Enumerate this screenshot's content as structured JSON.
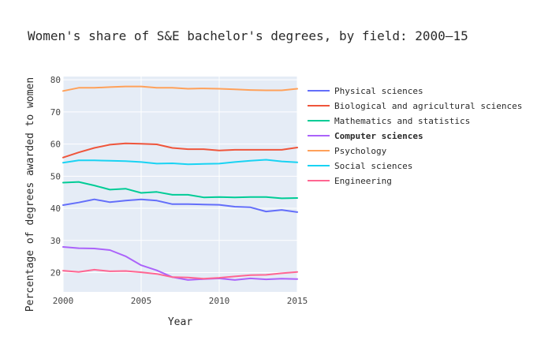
{
  "chart_data": {
    "type": "line",
    "title": "Women's share of S&E bachelor's degrees, by field: 2000–15",
    "xlabel": "Year",
    "ylabel": "Percentage of degrees awarded to women",
    "xlim": [
      2000,
      2015
    ],
    "ylim": [
      14,
      81
    ],
    "x_ticks": [
      2000,
      2005,
      2010,
      2015
    ],
    "y_ticks": [
      20,
      30,
      40,
      50,
      60,
      70,
      80
    ],
    "grid": true,
    "legend_position": "right",
    "x": [
      2000,
      2001,
      2002,
      2003,
      2004,
      2005,
      2006,
      2007,
      2008,
      2009,
      2010,
      2011,
      2012,
      2013,
      2014,
      2015
    ],
    "series": [
      {
        "name": "Physical sciences",
        "color": "#636efa",
        "bold": false,
        "values": [
          41.0,
          41.8,
          42.8,
          41.9,
          42.4,
          42.8,
          42.4,
          41.3,
          41.3,
          41.2,
          41.1,
          40.5,
          40.3,
          39.0,
          39.5,
          38.8
        ]
      },
      {
        "name": "Biological and agricultural sciences",
        "color": "#ef553b",
        "bold": false,
        "values": [
          55.8,
          57.4,
          58.8,
          59.8,
          60.2,
          60.1,
          59.9,
          58.8,
          58.4,
          58.4,
          58.0,
          58.2,
          58.2,
          58.2,
          58.2,
          58.9
        ]
      },
      {
        "name": "Mathematics and statistics",
        "color": "#00cc96",
        "bold": false,
        "values": [
          48.0,
          48.2,
          47.1,
          45.8,
          46.1,
          44.8,
          45.1,
          44.2,
          44.2,
          43.4,
          43.5,
          43.4,
          43.5,
          43.5,
          43.1,
          43.2
        ]
      },
      {
        "name": "Computer sciences",
        "color": "#ab63fa",
        "bold": true,
        "values": [
          28.0,
          27.6,
          27.5,
          27.0,
          25.1,
          22.3,
          20.7,
          18.6,
          17.7,
          18.0,
          18.2,
          17.7,
          18.2,
          17.9,
          18.1,
          18.0
        ]
      },
      {
        "name": "Psychology",
        "color": "#ffa15a",
        "bold": false,
        "values": [
          76.5,
          77.5,
          77.5,
          77.7,
          77.9,
          77.9,
          77.5,
          77.5,
          77.2,
          77.3,
          77.2,
          77.0,
          76.8,
          76.7,
          76.7,
          77.2
        ]
      },
      {
        "name": "Social sciences",
        "color": "#19d3f3",
        "bold": false,
        "values": [
          54.2,
          54.9,
          54.9,
          54.8,
          54.7,
          54.4,
          53.9,
          54.0,
          53.7,
          53.8,
          53.9,
          54.4,
          54.8,
          55.1,
          54.6,
          54.3
        ]
      },
      {
        "name": "Engineering",
        "color": "#ff6692",
        "bold": false,
        "values": [
          20.6,
          20.2,
          20.9,
          20.4,
          20.5,
          20.1,
          19.6,
          18.6,
          18.5,
          18.1,
          18.4,
          18.8,
          19.2,
          19.3,
          19.8,
          20.2
        ]
      }
    ]
  }
}
